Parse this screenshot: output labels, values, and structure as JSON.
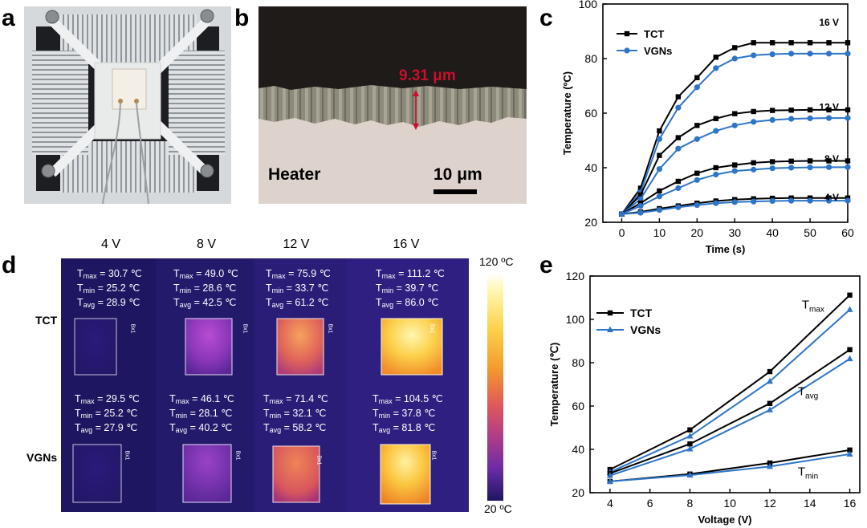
{
  "panels": {
    "a": "a",
    "b": "b",
    "c": "c",
    "d": "d",
    "e": "e"
  },
  "micrograph": {
    "thickness": "9.31 μm",
    "material": "Heater",
    "scale": "10 μm"
  },
  "thermal": {
    "voltages": [
      "4 V",
      "8 V",
      "12 V",
      "16 V"
    ],
    "rows": [
      "TCT",
      "VGNs"
    ],
    "colorbar": {
      "max": "120 ºC",
      "min": "20 ºC"
    },
    "box_label": "Bx1",
    "tct": [
      {
        "tmax": "= 30.7 ℃",
        "tmin": "= 25.2 ℃",
        "tavg": "= 28.9 ℃"
      },
      {
        "tmax": "= 49.0 ℃",
        "tmin": "= 28.6 ℃",
        "tavg": "= 42.5 ℃"
      },
      {
        "tmax": "= 75.9 ℃",
        "tmin": "= 33.7 ℃",
        "tavg": "= 61.2 ℃"
      },
      {
        "tmax": "= 111.2 ℃",
        "tmin": "= 39.7 ℃",
        "tavg": "= 86.0 ℃"
      }
    ],
    "vgns": [
      {
        "tmax": "= 29.5 ℃",
        "tmin": "= 25.2 ℃",
        "tavg": "= 27.9 ℃"
      },
      {
        "tmax": "= 46.1 ℃",
        "tmin": "= 28.1 ℃",
        "tavg": "= 40.2 ℃"
      },
      {
        "tmax": "= 71.4 ℃",
        "tmin": "= 32.1 ℃",
        "tavg": "= 58.2 ℃"
      },
      {
        "tmax": "= 104.5 ℃",
        "tmin": "= 37.8 ℃",
        "tavg": "= 81.8 ℃"
      }
    ],
    "sym": {
      "T": "T",
      "max": "max",
      "min": "min",
      "avg": "avg"
    }
  },
  "chart_data": [
    {
      "id": "c",
      "type": "line",
      "xlabel": "Time (s)",
      "ylabel": "Temperature (ºC)",
      "xlim": [
        -5,
        60
      ],
      "ylim": [
        20,
        100
      ],
      "xticks": [
        0,
        10,
        20,
        30,
        40,
        50,
        60
      ],
      "yticks": [
        20,
        40,
        60,
        80,
        100
      ],
      "x": [
        0,
        5,
        10,
        15,
        20,
        25,
        30,
        35,
        40,
        45,
        50,
        55,
        60
      ],
      "legend": [
        "TCT",
        "VGNs"
      ],
      "annotations": [
        "16 V",
        "12 V",
        "8 V",
        "4 V"
      ],
      "series": [
        {
          "name": "TCT 16 V",
          "group": "TCT",
          "values": [
            23,
            32.5,
            53.5,
            66,
            73,
            80.5,
            84,
            85.8,
            85.8,
            85.8,
            85.8,
            85.8,
            85.8
          ]
        },
        {
          "name": "VGNs 16 V",
          "group": "VGNs",
          "values": [
            23,
            31,
            50.5,
            62,
            69.5,
            76.5,
            80,
            81.2,
            81.6,
            81.8,
            81.8,
            81.8,
            81.8
          ]
        },
        {
          "name": "TCT 12 V",
          "group": "TCT",
          "values": [
            23,
            30,
            44.5,
            51,
            55.5,
            58,
            59.8,
            60.6,
            61,
            61.1,
            61.2,
            61.2,
            61.2
          ]
        },
        {
          "name": "VGNs 12 V",
          "group": "VGNs",
          "values": [
            23,
            28.5,
            39.5,
            47,
            50.5,
            53.5,
            55.5,
            56.8,
            57.5,
            57.9,
            58.1,
            58.2,
            58.2
          ]
        },
        {
          "name": "TCT 8 V",
          "group": "TCT",
          "values": [
            23,
            27,
            31.5,
            35,
            38,
            40,
            41,
            41.8,
            42.2,
            42.4,
            42.5,
            42.5,
            42.5
          ]
        },
        {
          "name": "VGNs 8 V",
          "group": "VGNs",
          "values": [
            23,
            26,
            29.5,
            32.5,
            35.5,
            37.5,
            38.8,
            39.3,
            39.8,
            40,
            40.1,
            40.2,
            40.2
          ]
        },
        {
          "name": "TCT 4 V",
          "group": "TCT",
          "values": [
            23,
            23.8,
            25,
            26,
            27,
            27.8,
            28.3,
            28.6,
            28.8,
            28.9,
            28.9,
            28.9,
            28.9
          ]
        },
        {
          "name": "VGNs 4 V",
          "group": "VGNs",
          "values": [
            23,
            23.5,
            24.5,
            25.5,
            26.3,
            27,
            27.4,
            27.6,
            27.8,
            27.9,
            27.9,
            27.9,
            27.9
          ]
        }
      ]
    },
    {
      "id": "e",
      "type": "line",
      "xlabel": "Voltage (V)",
      "ylabel": "Temperature (℃)",
      "xlim": [
        3,
        16.5
      ],
      "ylim": [
        20,
        120
      ],
      "xticks": [
        4,
        6,
        8,
        10,
        12,
        14,
        16
      ],
      "yticks": [
        20,
        40,
        60,
        80,
        100,
        120
      ],
      "x": [
        4,
        8,
        12,
        16
      ],
      "legend": [
        "TCT",
        "VGNs"
      ],
      "series": [
        {
          "name": "TCT Tmax",
          "group": "TCT",
          "values": [
            30.7,
            49.0,
            75.9,
            111.2
          ]
        },
        {
          "name": "VGNs Tmax",
          "group": "VGNs",
          "values": [
            29.5,
            46.1,
            71.4,
            104.5
          ]
        },
        {
          "name": "TCT Tavg",
          "group": "TCT",
          "values": [
            28.9,
            42.5,
            61.2,
            86.0
          ]
        },
        {
          "name": "VGNs Tavg",
          "group": "VGNs",
          "values": [
            27.9,
            40.2,
            58.2,
            81.8
          ]
        },
        {
          "name": "TCT Tmin",
          "group": "TCT",
          "values": [
            25.2,
            28.6,
            33.7,
            39.7
          ]
        },
        {
          "name": "VGNs Tmin",
          "group": "VGNs",
          "values": [
            25.2,
            28.1,
            32.1,
            37.8
          ]
        }
      ]
    }
  ],
  "colors": {
    "tct": "#000000",
    "vgns": "#2e75c8",
    "arrow": "#c8102e",
    "thermal_bg": "#1e1660"
  }
}
